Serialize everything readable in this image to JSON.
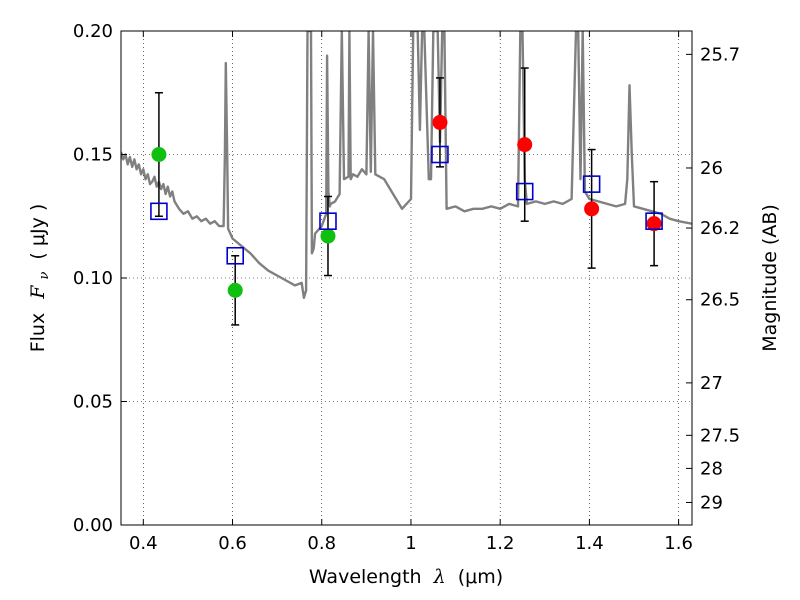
{
  "chart_data": {
    "type": "scatter",
    "xlabel_prefix": "Wavelength",
    "xlabel_math": "λ",
    "xlabel_unit": "(μm)",
    "ylabel_prefix": "Flux",
    "ylabel_math": "F",
    "ylabel_sub": "ν",
    "ylabel_unit": "( μJy )",
    "y2label": "Magnitude (AB)",
    "xlim": [
      0.35,
      1.63
    ],
    "ylim": [
      0.0,
      0.2
    ],
    "grid": true,
    "x_ticks": [
      {
        "value": 0.4,
        "label": "0.4"
      },
      {
        "value": 0.6,
        "label": "0.6"
      },
      {
        "value": 0.8,
        "label": "0.8"
      },
      {
        "value": 1.0,
        "label": "1"
      },
      {
        "value": 1.2,
        "label": "1.2"
      },
      {
        "value": 1.4,
        "label": "1.4"
      },
      {
        "value": 1.6,
        "label": "1.6"
      }
    ],
    "y_ticks": [
      {
        "value": 0.0,
        "label": "0.00"
      },
      {
        "value": 0.05,
        "label": "0.05"
      },
      {
        "value": 0.1,
        "label": "0.10"
      },
      {
        "value": 0.15,
        "label": "0.15"
      },
      {
        "value": 0.2,
        "label": "0.20"
      }
    ],
    "y2_ticks": [
      {
        "mag": 25.7,
        "label": "25.7"
      },
      {
        "mag": 26.0,
        "label": "26"
      },
      {
        "mag": 26.2,
        "label": "26.2"
      },
      {
        "mag": 26.5,
        "label": "26.5"
      },
      {
        "mag": 27.0,
        "label": "27"
      },
      {
        "mag": 27.5,
        "label": "27.5"
      },
      {
        "mag": 28.0,
        "label": "28"
      },
      {
        "mag": 29.0,
        "label": "29"
      }
    ],
    "series": [
      {
        "name": "green-observed",
        "kind": "filled-circle",
        "color": "#10c010",
        "points": [
          {
            "x": 0.435,
            "y": 0.15,
            "err": 0.025
          },
          {
            "x": 0.606,
            "y": 0.095,
            "err": 0.014
          },
          {
            "x": 0.814,
            "y": 0.117,
            "err": 0.016
          }
        ]
      },
      {
        "name": "red-observed",
        "kind": "filled-circle",
        "color": "#ff0000",
        "points": [
          {
            "x": 1.065,
            "y": 0.163,
            "err": 0.018
          },
          {
            "x": 1.255,
            "y": 0.154,
            "err": 0.031
          },
          {
            "x": 1.405,
            "y": 0.128,
            "err": 0.024
          },
          {
            "x": 1.545,
            "y": 0.122,
            "err": 0.017
          }
        ]
      },
      {
        "name": "model-synthetic",
        "kind": "open-square",
        "color": "#0000cc",
        "points": [
          {
            "x": 0.435,
            "y": 0.127
          },
          {
            "x": 0.606,
            "y": 0.109
          },
          {
            "x": 0.814,
            "y": 0.123
          },
          {
            "x": 1.065,
            "y": 0.15
          },
          {
            "x": 1.255,
            "y": 0.135
          },
          {
            "x": 1.405,
            "y": 0.138
          },
          {
            "x": 1.545,
            "y": 0.123
          }
        ]
      }
    ],
    "template_spectrum": {
      "name": "template-spectrum",
      "color": "#808080",
      "x": [
        0.35,
        0.355,
        0.36,
        0.365,
        0.37,
        0.375,
        0.38,
        0.385,
        0.39,
        0.395,
        0.4,
        0.405,
        0.41,
        0.415,
        0.42,
        0.425,
        0.43,
        0.435,
        0.44,
        0.445,
        0.45,
        0.455,
        0.46,
        0.465,
        0.47,
        0.48,
        0.49,
        0.5,
        0.51,
        0.52,
        0.53,
        0.54,
        0.55,
        0.56,
        0.57,
        0.58,
        0.583,
        0.585,
        0.588,
        0.59,
        0.6,
        0.62,
        0.64,
        0.66,
        0.68,
        0.7,
        0.72,
        0.74,
        0.755,
        0.76,
        0.765,
        0.768,
        0.77,
        0.773,
        0.776,
        0.778,
        0.782,
        0.785,
        0.79,
        0.8,
        0.81,
        0.812,
        0.815,
        0.818,
        0.82,
        0.83,
        0.84,
        0.845,
        0.85,
        0.86,
        0.862,
        0.865,
        0.87,
        0.88,
        0.89,
        0.9,
        0.905,
        0.91,
        0.915,
        0.92,
        0.94,
        0.96,
        0.98,
        1.0,
        1.005,
        1.01,
        1.015,
        1.02,
        1.025,
        1.03,
        1.04,
        1.045,
        1.05,
        1.055,
        1.06,
        1.065,
        1.07,
        1.075,
        1.08,
        1.1,
        1.12,
        1.14,
        1.16,
        1.18,
        1.2,
        1.22,
        1.24,
        1.245,
        1.25,
        1.255,
        1.26,
        1.28,
        1.3,
        1.32,
        1.34,
        1.36,
        1.37,
        1.375,
        1.38,
        1.385,
        1.39,
        1.4,
        1.42,
        1.44,
        1.46,
        1.48,
        1.485,
        1.49,
        1.495,
        1.5,
        1.52,
        1.54,
        1.56,
        1.58,
        1.6,
        1.63
      ],
      "y": [
        0.151,
        0.148,
        0.15,
        0.146,
        0.149,
        0.145,
        0.148,
        0.144,
        0.146,
        0.142,
        0.144,
        0.14,
        0.142,
        0.138,
        0.139,
        0.141,
        0.137,
        0.139,
        0.136,
        0.138,
        0.134,
        0.137,
        0.133,
        0.135,
        0.131,
        0.128,
        0.126,
        0.127,
        0.124,
        0.125,
        0.123,
        0.124,
        0.122,
        0.123,
        0.121,
        0.121,
        0.15,
        0.187,
        0.15,
        0.12,
        0.116,
        0.113,
        0.11,
        0.106,
        0.103,
        0.101,
        0.099,
        0.097,
        0.098,
        0.092,
        0.095,
        0.2,
        0.2,
        0.2,
        0.2,
        0.11,
        0.112,
        0.118,
        0.119,
        0.121,
        0.126,
        0.19,
        0.135,
        0.129,
        0.13,
        0.131,
        0.134,
        0.2,
        0.14,
        0.141,
        0.2,
        0.14,
        0.142,
        0.141,
        0.144,
        0.142,
        0.2,
        0.143,
        0.2,
        0.142,
        0.14,
        0.134,
        0.128,
        0.132,
        0.2,
        0.2,
        0.2,
        0.16,
        0.2,
        0.2,
        0.14,
        0.14,
        0.2,
        0.2,
        0.2,
        0.155,
        0.2,
        0.2,
        0.128,
        0.129,
        0.127,
        0.128,
        0.128,
        0.129,
        0.128,
        0.13,
        0.129,
        0.2,
        0.2,
        0.14,
        0.13,
        0.131,
        0.13,
        0.131,
        0.13,
        0.132,
        0.2,
        0.2,
        0.14,
        0.2,
        0.135,
        0.132,
        0.131,
        0.13,
        0.129,
        0.13,
        0.14,
        0.178,
        0.15,
        0.129,
        0.128,
        0.127,
        0.126,
        0.124,
        0.123,
        0.122
      ]
    }
  }
}
